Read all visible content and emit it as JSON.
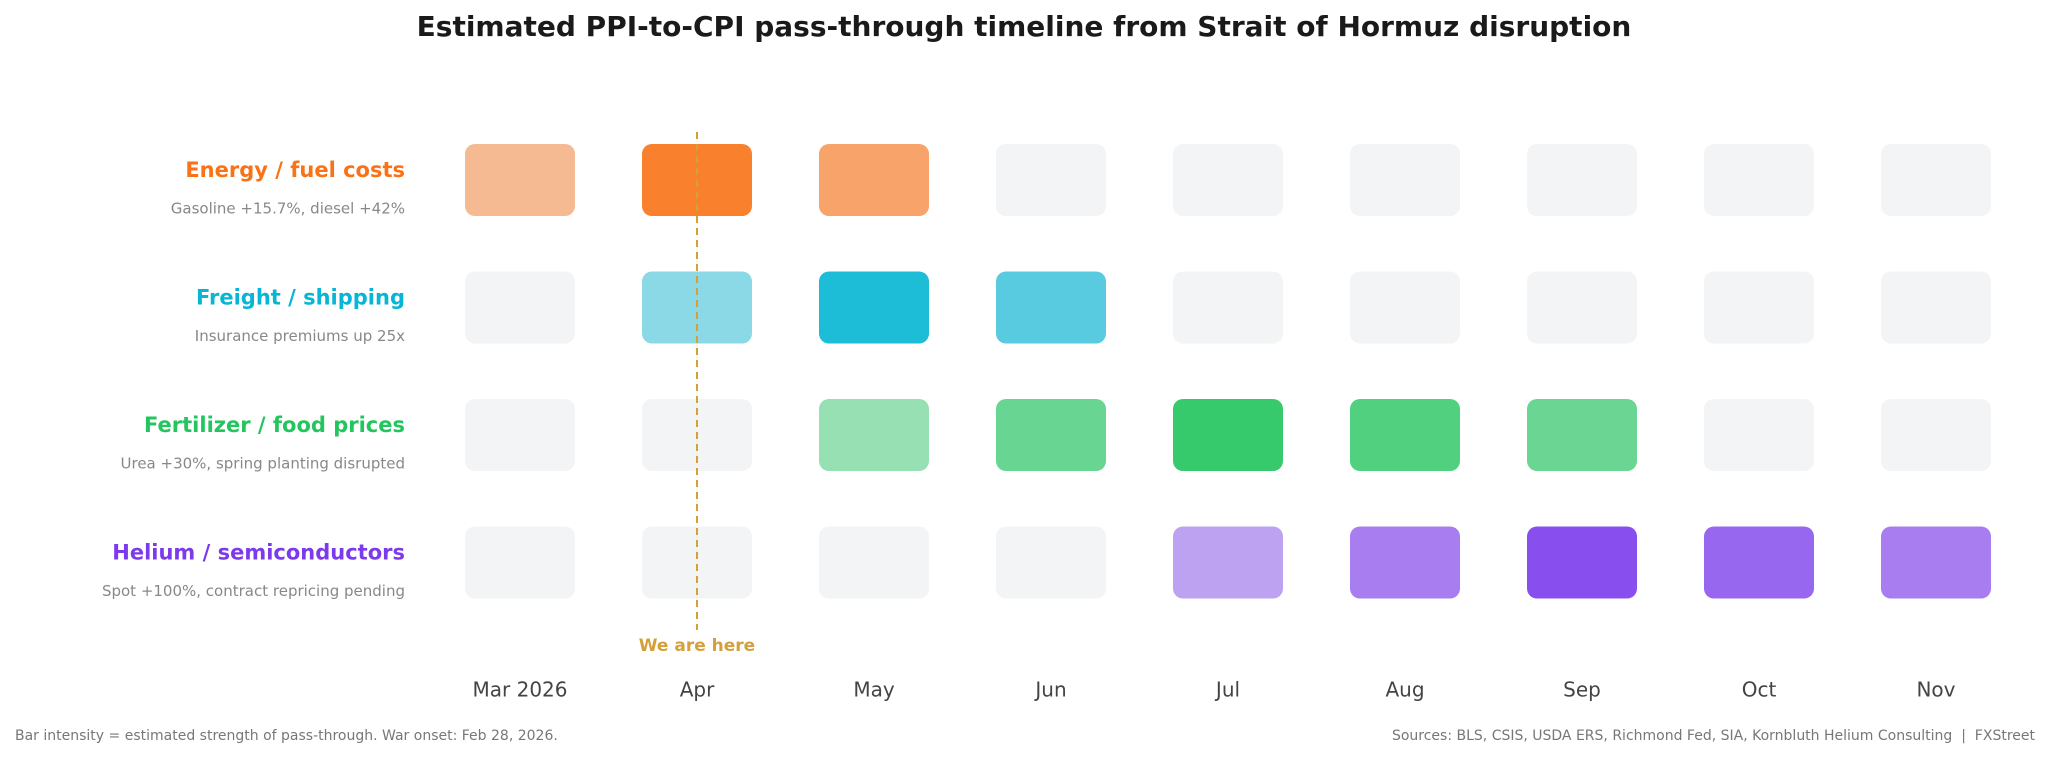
{
  "chart_data": {
    "type": "heatmap",
    "title": "Estimated PPI-to-CPI pass-through timeline from Strait of Hormuz disruption",
    "categories": [
      "Mar 2026",
      "Apr",
      "May",
      "Jun",
      "Jul",
      "Aug",
      "Sep",
      "Oct",
      "Nov"
    ],
    "series": [
      {
        "name": "Energy / fuel costs",
        "note": "Gasoline +15.7%, diesel +42%",
        "color": "#f97316",
        "values": [
          0.45,
          0.9,
          0.63,
          0,
          0,
          0,
          0,
          0,
          0
        ]
      },
      {
        "name": "Freight / shipping",
        "note": "Insurance premiums up 25x",
        "color": "#06b6d4",
        "values": [
          0,
          0.44,
          0.9,
          0.65,
          0,
          0,
          0,
          0,
          0
        ]
      },
      {
        "name": "Fertilizer / food prices",
        "note": "Urea +30%, spring planting disrupted",
        "color": "#22c55e",
        "values": [
          0,
          0,
          0.44,
          0.66,
          0.9,
          0.78,
          0.65,
          0,
          0
        ]
      },
      {
        "name": "Helium / semiconductors",
        "note": "Spot +100%, contract repricing pending",
        "color": "#7c3aed",
        "values": [
          0,
          0,
          0,
          0,
          0.44,
          0.64,
          0.89,
          0.76,
          0.64
        ]
      }
    ],
    "empty_color": "#f3f4f6",
    "marker": {
      "label": "We are here",
      "category": "Apr",
      "color": "#d4a03a"
    },
    "footnote": "Bar intensity = estimated strength of pass-through. War onset: Feb 28, 2026.",
    "source": "Sources: BLS, CSIS, USDA ERS, Richmond Fed, SIA, Kornbluth Helium Consulting  |  FXStreet"
  }
}
